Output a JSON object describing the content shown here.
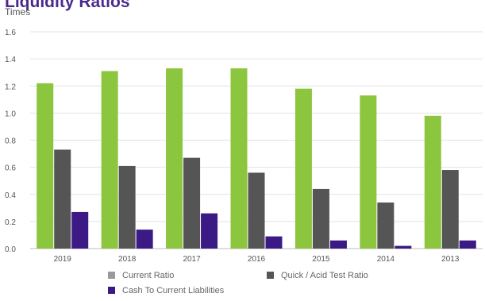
{
  "chart_data": {
    "type": "bar",
    "title": "Liquidity Ratios",
    "ylabel": "Times",
    "xlabel": "",
    "ylim": [
      0,
      1.6
    ],
    "yticks": [
      "0.0",
      "0.2",
      "0.4",
      "0.6",
      "0.8",
      "1.0",
      "1.2",
      "1.4",
      "1.6"
    ],
    "categories": [
      "2019",
      "2018",
      "2017",
      "2016",
      "2015",
      "2014",
      "2013"
    ],
    "series": [
      {
        "name": "Current Ratio",
        "color": "#8cc63f",
        "values": [
          1.22,
          1.31,
          1.33,
          1.33,
          1.18,
          1.13,
          0.98
        ]
      },
      {
        "name": "Quick / Acid Test Ratio",
        "color": "#555555",
        "values": [
          0.73,
          0.61,
          0.67,
          0.56,
          0.44,
          0.34,
          0.58
        ]
      },
      {
        "name": "Cash To Current Liabilities",
        "color": "#3b1a86",
        "values": [
          0.27,
          0.14,
          0.26,
          0.09,
          0.06,
          0.02,
          0.06
        ]
      }
    ],
    "legend_position": "bottom",
    "grid": true
  }
}
